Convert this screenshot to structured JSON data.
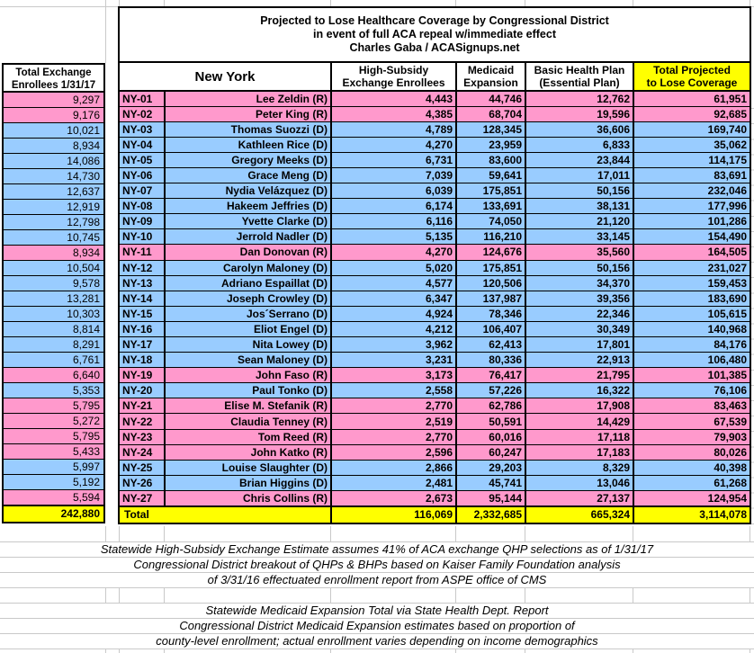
{
  "title_lines": [
    "Projected to Lose Healthcare Coverage by Congressional District",
    "in event of full ACA repeal w/immediate effect",
    "Charles Gaba / ACASignups.net"
  ],
  "left_column": {
    "header_lines": [
      "Total Exchange",
      "Enrollees 1/31/17"
    ],
    "total_value": "242,880"
  },
  "table": {
    "state_label": "New York",
    "column_headers": [
      {
        "lines": [
          "High-Subsidy",
          "Exchange Enrollees"
        ]
      },
      {
        "lines": [
          "Medicaid",
          "Expansion"
        ]
      },
      {
        "lines": [
          "Basic Health Plan",
          "(Essential Plan)"
        ]
      },
      {
        "lines": [
          "Total Projected",
          "to Lose Coverage"
        ]
      }
    ],
    "total_row": {
      "label": "Total",
      "high_subsidy": "116,069",
      "medicaid_expansion": "2,332,685",
      "basic_health_plan": "665,324",
      "total_projected": "3,114,078"
    }
  },
  "districts": [
    {
      "code": "NY-01",
      "rep": "Lee Zeldin (R)",
      "party": "R",
      "exchange_enrollees": "9,297",
      "high_subsidy": "4,443",
      "medicaid_expansion": "44,746",
      "basic_health_plan": "12,762",
      "total_projected": "61,951"
    },
    {
      "code": "NY-02",
      "rep": "Peter King (R)",
      "party": "R",
      "exchange_enrollees": "9,176",
      "high_subsidy": "4,385",
      "medicaid_expansion": "68,704",
      "basic_health_plan": "19,596",
      "total_projected": "92,685"
    },
    {
      "code": "NY-03",
      "rep": "Thomas Suozzi (D)",
      "party": "D",
      "exchange_enrollees": "10,021",
      "high_subsidy": "4,789",
      "medicaid_expansion": "128,345",
      "basic_health_plan": "36,606",
      "total_projected": "169,740"
    },
    {
      "code": "NY-04",
      "rep": "Kathleen Rice (D)",
      "party": "D",
      "exchange_enrollees": "8,934",
      "high_subsidy": "4,270",
      "medicaid_expansion": "23,959",
      "basic_health_plan": "6,833",
      "total_projected": "35,062"
    },
    {
      "code": "NY-05",
      "rep": "Gregory Meeks (D)",
      "party": "D",
      "exchange_enrollees": "14,086",
      "high_subsidy": "6,731",
      "medicaid_expansion": "83,600",
      "basic_health_plan": "23,844",
      "total_projected": "114,175"
    },
    {
      "code": "NY-06",
      "rep": "Grace Meng (D)",
      "party": "D",
      "exchange_enrollees": "14,730",
      "high_subsidy": "7,039",
      "medicaid_expansion": "59,641",
      "basic_health_plan": "17,011",
      "total_projected": "83,691"
    },
    {
      "code": "NY-07",
      "rep": "Nydia Velázquez (D)",
      "party": "D",
      "exchange_enrollees": "12,637",
      "high_subsidy": "6,039",
      "medicaid_expansion": "175,851",
      "basic_health_plan": "50,156",
      "total_projected": "232,046"
    },
    {
      "code": "NY-08",
      "rep": "Hakeem Jeffries (D)",
      "party": "D",
      "exchange_enrollees": "12,919",
      "high_subsidy": "6,174",
      "medicaid_expansion": "133,691",
      "basic_health_plan": "38,131",
      "total_projected": "177,996"
    },
    {
      "code": "NY-09",
      "rep": "Yvette Clarke (D)",
      "party": "D",
      "exchange_enrollees": "12,798",
      "high_subsidy": "6,116",
      "medicaid_expansion": "74,050",
      "basic_health_plan": "21,120",
      "total_projected": "101,286"
    },
    {
      "code": "NY-10",
      "rep": "Jerrold Nadler (D)",
      "party": "D",
      "exchange_enrollees": "10,745",
      "high_subsidy": "5,135",
      "medicaid_expansion": "116,210",
      "basic_health_plan": "33,145",
      "total_projected": "154,490"
    },
    {
      "code": "NY-11",
      "rep": "Dan Donovan (R)",
      "party": "R",
      "exchange_enrollees": "8,934",
      "high_subsidy": "4,270",
      "medicaid_expansion": "124,676",
      "basic_health_plan": "35,560",
      "total_projected": "164,505"
    },
    {
      "code": "NY-12",
      "rep": "Carolyn Maloney (D)",
      "party": "D",
      "exchange_enrollees": "10,504",
      "high_subsidy": "5,020",
      "medicaid_expansion": "175,851",
      "basic_health_plan": "50,156",
      "total_projected": "231,027"
    },
    {
      "code": "NY-13",
      "rep": "Adriano Espaillat (D)",
      "party": "D",
      "exchange_enrollees": "9,578",
      "high_subsidy": "4,577",
      "medicaid_expansion": "120,506",
      "basic_health_plan": "34,370",
      "total_projected": "159,453"
    },
    {
      "code": "NY-14",
      "rep": "Joseph Crowley (D)",
      "party": "D",
      "exchange_enrollees": "13,281",
      "high_subsidy": "6,347",
      "medicaid_expansion": "137,987",
      "basic_health_plan": "39,356",
      "total_projected": "183,690"
    },
    {
      "code": "NY-15",
      "rep": "Jos´Serrano (D)",
      "party": "D",
      "exchange_enrollees": "10,303",
      "high_subsidy": "4,924",
      "medicaid_expansion": "78,346",
      "basic_health_plan": "22,346",
      "total_projected": "105,615"
    },
    {
      "code": "NY-16",
      "rep": "Eliot Engel (D)",
      "party": "D",
      "exchange_enrollees": "8,814",
      "high_subsidy": "4,212",
      "medicaid_expansion": "106,407",
      "basic_health_plan": "30,349",
      "total_projected": "140,968"
    },
    {
      "code": "NY-17",
      "rep": "Nita Lowey (D)",
      "party": "D",
      "exchange_enrollees": "8,291",
      "high_subsidy": "3,962",
      "medicaid_expansion": "62,413",
      "basic_health_plan": "17,801",
      "total_projected": "84,176"
    },
    {
      "code": "NY-18",
      "rep": "Sean Maloney (D)",
      "party": "D",
      "exchange_enrollees": "6,761",
      "high_subsidy": "3,231",
      "medicaid_expansion": "80,336",
      "basic_health_plan": "22,913",
      "total_projected": "106,480"
    },
    {
      "code": "NY-19",
      "rep": "John Faso (R)",
      "party": "R",
      "exchange_enrollees": "6,640",
      "high_subsidy": "3,173",
      "medicaid_expansion": "76,417",
      "basic_health_plan": "21,795",
      "total_projected": "101,385"
    },
    {
      "code": "NY-20",
      "rep": "Paul Tonko (D)",
      "party": "D",
      "exchange_enrollees": "5,353",
      "high_subsidy": "2,558",
      "medicaid_expansion": "57,226",
      "basic_health_plan": "16,322",
      "total_projected": "76,106"
    },
    {
      "code": "NY-21",
      "rep": "Elise M. Stefanik (R)",
      "party": "R",
      "exchange_enrollees": "5,795",
      "high_subsidy": "2,770",
      "medicaid_expansion": "62,786",
      "basic_health_plan": "17,908",
      "total_projected": "83,463"
    },
    {
      "code": "NY-22",
      "rep": "Claudia Tenney (R)",
      "party": "R",
      "exchange_enrollees": "5,272",
      "high_subsidy": "2,519",
      "medicaid_expansion": "50,591",
      "basic_health_plan": "14,429",
      "total_projected": "67,539"
    },
    {
      "code": "NY-23",
      "rep": "Tom Reed (R)",
      "party": "R",
      "exchange_enrollees": "5,795",
      "high_subsidy": "2,770",
      "medicaid_expansion": "60,016",
      "basic_health_plan": "17,118",
      "total_projected": "79,903"
    },
    {
      "code": "NY-24",
      "rep": "John Katko (R)",
      "party": "R",
      "exchange_enrollees": "5,433",
      "high_subsidy": "2,596",
      "medicaid_expansion": "60,247",
      "basic_health_plan": "17,183",
      "total_projected": "80,026"
    },
    {
      "code": "NY-25",
      "rep": "Louise Slaughter (D)",
      "party": "D",
      "exchange_enrollees": "5,997",
      "high_subsidy": "2,866",
      "medicaid_expansion": "29,203",
      "basic_health_plan": "8,329",
      "total_projected": "40,398"
    },
    {
      "code": "NY-26",
      "rep": "Brian Higgins (D)",
      "party": "D",
      "exchange_enrollees": "5,192",
      "high_subsidy": "2,481",
      "medicaid_expansion": "45,741",
      "basic_health_plan": "13,046",
      "total_projected": "61,268"
    },
    {
      "code": "NY-27",
      "rep": "Chris Collins (R)",
      "party": "R",
      "exchange_enrollees": "5,594",
      "high_subsidy": "2,673",
      "medicaid_expansion": "95,144",
      "basic_health_plan": "27,137",
      "total_projected": "124,954"
    }
  ],
  "footnotes": {
    "block1": [
      "Statewide High-Subsidy Exchange Estimate assumes 41% of ACA exchange QHP selections as of 1/31/17",
      "Congressional District breakout of QHPs & BHPs based on Kaiser Family Foundation analysis",
      "of 3/31/16 effectuated enrollment report from ASPE office of CMS"
    ],
    "block2": [
      "Statewide Medicaid Expansion Total via State Health Dept. Report",
      "Congressional District Medicaid Expansion estimates based on proportion of",
      "county-level enrollment; actual enrollment varies depending on income demographics"
    ]
  },
  "colors": {
    "republican_row": "#FF99CC",
    "democrat_row": "#99CCFF",
    "total_highlight": "#FFFF00"
  }
}
